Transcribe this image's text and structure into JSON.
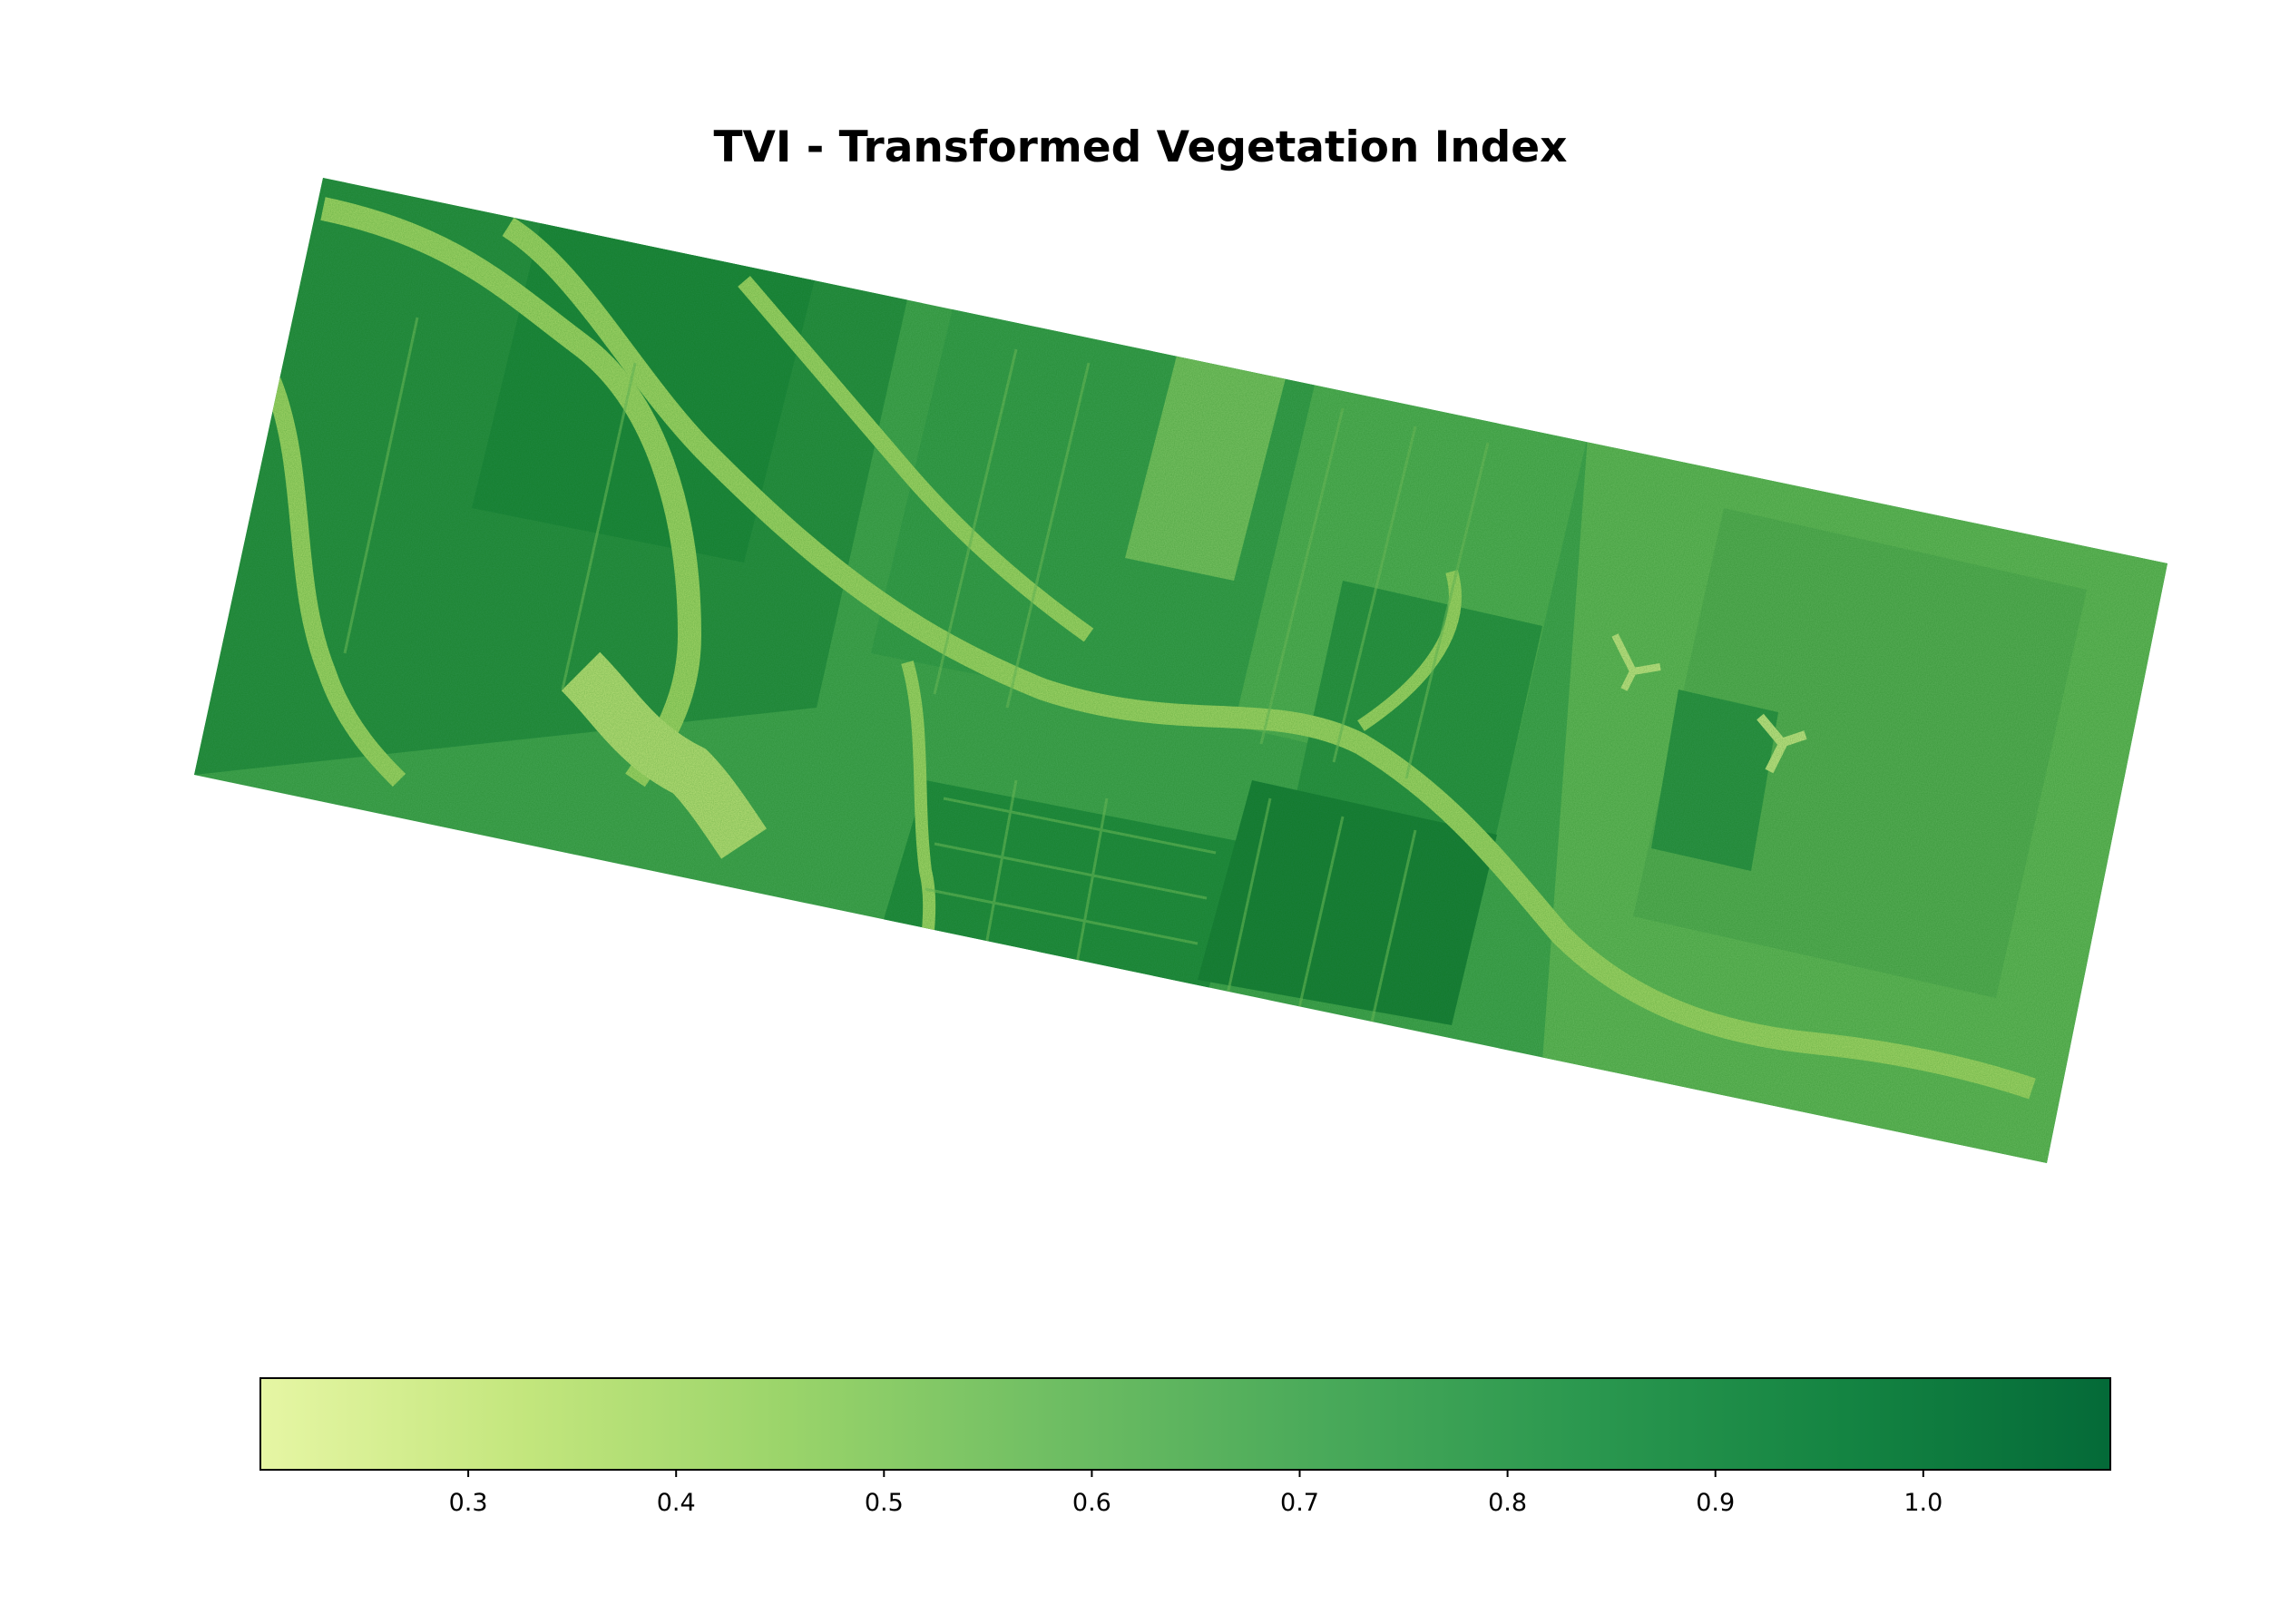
{
  "chart_data": {
    "type": "heatmap",
    "title": "TVI - Transformed Vegetation Index",
    "xlabel": "",
    "ylabel": "",
    "axes_visible": false,
    "colormap": "YlGn",
    "colorbar": {
      "orientation": "horizontal",
      "placement": "bottom",
      "range": [
        0.2,
        1.09
      ],
      "ticks": [
        0.3,
        0.4,
        0.5,
        0.6,
        0.7,
        0.8,
        0.9,
        1.0
      ],
      "tick_labels": [
        "0.3",
        "0.4",
        "0.5",
        "0.6",
        "0.7",
        "0.8",
        "0.9",
        "1.0"
      ],
      "colors": [
        "#e6f6a4",
        "#c3e67d",
        "#9ad46a",
        "#6fbe63",
        "#4aaa5a",
        "#2b984f",
        "#148442",
        "#046a38"
      ]
    }
  }
}
